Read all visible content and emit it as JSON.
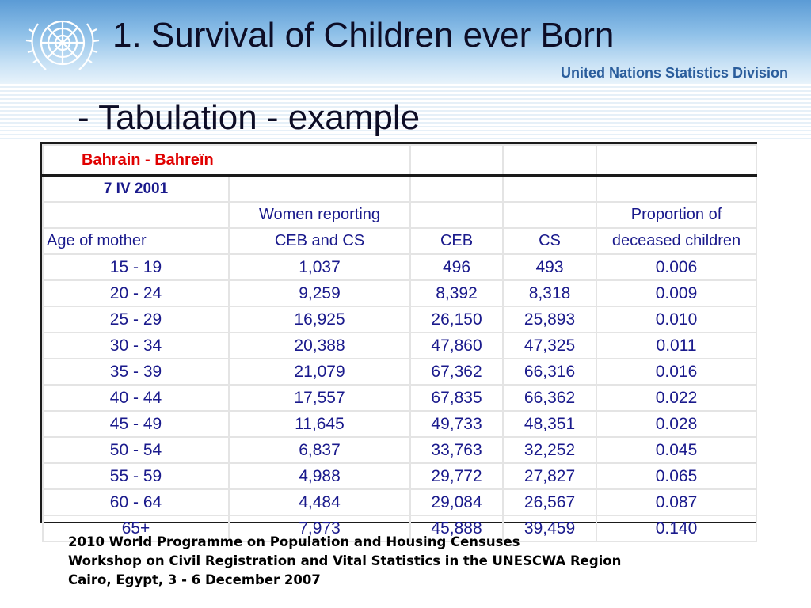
{
  "header": {
    "title": "1. Survival of Children ever Born",
    "org": "United Nations Statistics Division",
    "logo_icon": "un-emblem-icon"
  },
  "subtitle": "- Tabulation - example",
  "table": {
    "country": "Bahrain - Bahreïn",
    "date": "7 IV 2001",
    "headers": {
      "age_label": "Age of mother",
      "women_line1": "Women reporting",
      "women_line2": "CEB and CS",
      "ceb": "CEB",
      "cs": "CS",
      "prop_line1": "Proportion of",
      "prop_line2": "deceased children"
    },
    "rows": [
      [
        "15 - 19",
        "1,037",
        "496",
        "493",
        "0.006"
      ],
      [
        "20 - 24",
        "9,259",
        "8,392",
        "8,318",
        "0.009"
      ],
      [
        "25 - 29",
        "16,925",
        "26,150",
        "25,893",
        "0.010"
      ],
      [
        "30 - 34",
        "20,388",
        "47,860",
        "47,325",
        "0.011"
      ],
      [
        "35 - 39",
        "21,079",
        "67,362",
        "66,316",
        "0.016"
      ],
      [
        "40 - 44",
        "17,557",
        "67,835",
        "66,362",
        "0.022"
      ],
      [
        "45 - 49",
        "11,645",
        "49,733",
        "48,351",
        "0.028"
      ],
      [
        "50 - 54",
        "6,837",
        "33,763",
        "32,252",
        "0.045"
      ],
      [
        "55 - 59",
        "4,988",
        "29,772",
        "27,827",
        "0.065"
      ],
      [
        "60 - 64",
        "4,484",
        "29,084",
        "26,567",
        "0.087"
      ],
      [
        "65+",
        "7,973",
        "45,888",
        "39,459",
        "0.140"
      ]
    ]
  },
  "footer": {
    "line1": "2010 World Programme on Population and Housing Censuses",
    "line2": "Workshop on Civil Registration and Vital Statistics in the UNESCWA Region",
    "line3": "Cairo, Egypt, 3 - 6 December 2007"
  },
  "colors": {
    "title_text": "#0d0d26",
    "table_text": "#1a1a8c",
    "country_text": "#e00000",
    "org_text": "#2a5d9c"
  }
}
